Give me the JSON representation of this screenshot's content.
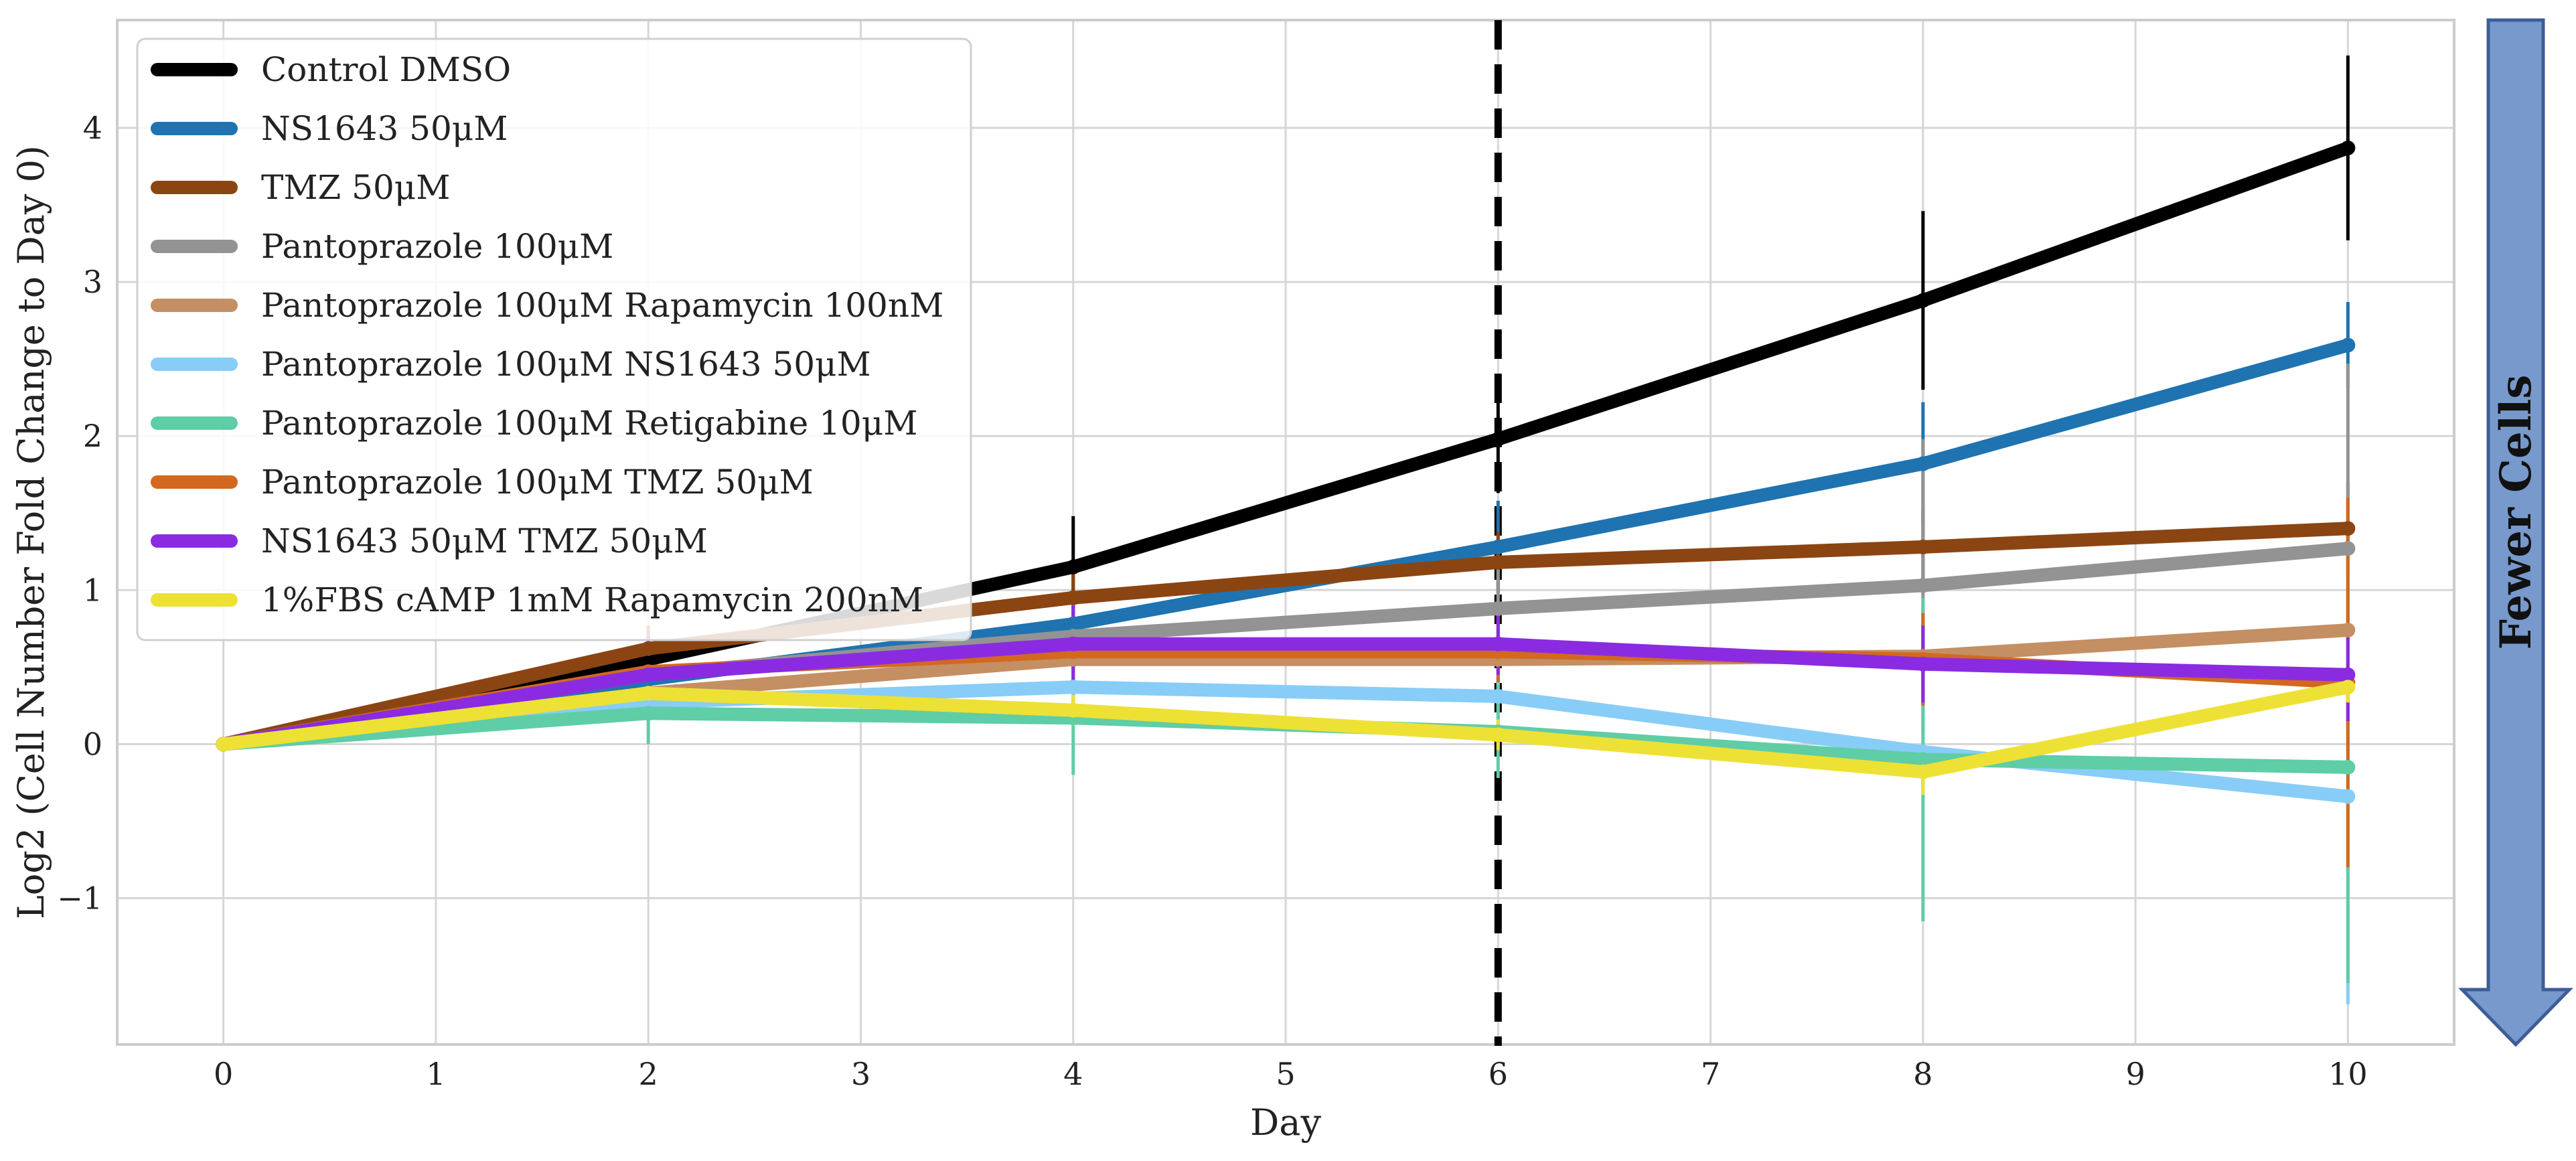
{
  "chart_data": {
    "type": "line",
    "title": "",
    "xlabel": "Day",
    "ylabel": "Log2 (Cell Number Fold Change to Day 0)",
    "xlim": [
      -0.5,
      10.5
    ],
    "ylim": [
      -1.95,
      4.7
    ],
    "xticks": [
      0,
      1,
      2,
      3,
      4,
      5,
      6,
      7,
      8,
      9,
      10
    ],
    "yticks": [
      -1,
      0,
      1,
      2,
      3,
      4
    ],
    "ytick_labels": [
      "−1",
      "0",
      "1",
      "2",
      "3",
      "4"
    ],
    "grid": true,
    "legend_position": "top-left",
    "vline": {
      "x": 6,
      "style": "dashed",
      "color": "#000000"
    },
    "arrow_label": "Fewer Cells",
    "arrow_direction": "down",
    "arrow_color": "#7899cc",
    "x": [
      0,
      2,
      4,
      6,
      8,
      10
    ],
    "series": [
      {
        "name": "Control DMSO",
        "color": "#000000",
        "values": [
          0,
          0.55,
          1.15,
          1.98,
          2.88,
          3.87
        ],
        "errors": [
          0,
          0.2,
          0.33,
          0.35,
          0.58,
          0.6
        ]
      },
      {
        "name": "NS1643 50μM",
        "color": "#1f73b0",
        "values": [
          0,
          0.42,
          0.78,
          1.28,
          1.82,
          2.59
        ],
        "errors": [
          0,
          0.2,
          0.3,
          0.3,
          0.4,
          0.28
        ]
      },
      {
        "name": "TMZ 50μM",
        "color": "#8b4513",
        "values": [
          0,
          0.62,
          0.95,
          1.18,
          1.28,
          1.4
        ],
        "errors": [
          0,
          0.15,
          0.2,
          0.2,
          0.25,
          0.3
        ]
      },
      {
        "name": "Pantoprazole 100μM",
        "color": "#939393",
        "values": [
          0,
          0.45,
          0.7,
          0.88,
          1.03,
          1.27
        ],
        "errors": [
          0,
          0.2,
          0.25,
          0.3,
          0.95,
          1.2
        ]
      },
      {
        "name": "Pantoprazole 100μM Rapamycin 100nM",
        "color": "#c48f63",
        "values": [
          0,
          0.33,
          0.55,
          0.55,
          0.57,
          0.74
        ],
        "errors": [
          0,
          0.15,
          0.2,
          0.2,
          0.2,
          0.25
        ]
      },
      {
        "name": "Pantoprazole 100μM NS1643 50μM",
        "color": "#87cdf7",
        "values": [
          0,
          0.27,
          0.37,
          0.31,
          -0.05,
          -0.34
        ],
        "errors": [
          0,
          0.1,
          0.15,
          0.2,
          0.3,
          1.35
        ]
      },
      {
        "name": "Pantoprazole 100μM Retigabine 10μM",
        "color": "#5fcda6",
        "values": [
          0,
          0.2,
          0.17,
          0.08,
          -0.1,
          -0.15
        ],
        "errors": [
          0,
          0.2,
          0.37,
          0.3,
          1.05,
          1.4
        ]
      },
      {
        "name": "Pantoprazole 100μM TMZ 50μM",
        "color": "#d2691e",
        "values": [
          0,
          0.47,
          0.6,
          0.6,
          0.55,
          0.4
        ],
        "errors": [
          0,
          0.2,
          0.25,
          0.2,
          0.3,
          1.2
        ]
      },
      {
        "name": "NS1643 50μM TMZ 50μM",
        "color": "#8a2be2",
        "values": [
          0,
          0.45,
          0.65,
          0.65,
          0.52,
          0.45
        ],
        "errors": [
          0,
          0.25,
          0.25,
          0.2,
          0.25,
          0.3
        ]
      },
      {
        "name": "1%FBS cAMP 1mM Rapamycin 200nM",
        "color": "#ede135",
        "values": [
          0,
          0.33,
          0.22,
          0.06,
          -0.18,
          0.37
        ],
        "errors": [
          0,
          0.1,
          0.1,
          0.1,
          0.15,
          0.1
        ]
      }
    ]
  }
}
